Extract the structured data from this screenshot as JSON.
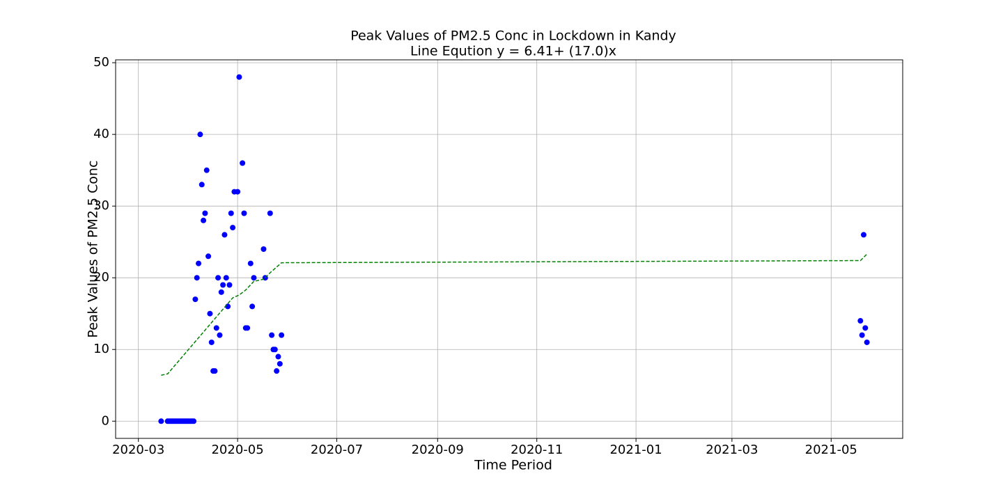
{
  "chart_data": {
    "type": "scatter",
    "title": "Peak Values of PM2.5 Conc in Lockdown in Kandy",
    "subtitle": "Line Eqution y = 6.41+ (17.0)x",
    "x_label": "Time Period",
    "y_label": "Peak Values of PM2.5 Conc",
    "xlim": [
      "2020-02-16",
      "2021-06-14"
    ],
    "xticks": [
      "2020-03",
      "2020-05",
      "2020-07",
      "2020-09",
      "2020-11",
      "2021-01",
      "2021-03",
      "2021-05"
    ],
    "ylim": [
      -2.4,
      50.4
    ],
    "yticks": [
      0,
      10,
      20,
      30,
      40,
      50
    ],
    "grid": true,
    "series": [
      {
        "type": "scatter",
        "color": "#0000ff",
        "x": [
          "2020-03-15",
          "2020-03-19",
          "2020-03-20",
          "2020-03-21",
          "2020-03-22",
          "2020-03-23",
          "2020-03-24",
          "2020-03-25",
          "2020-03-26",
          "2020-03-27",
          "2020-03-28",
          "2020-03-29",
          "2020-03-30",
          "2020-03-31",
          "2020-04-01",
          "2020-04-02",
          "2020-04-03",
          "2020-04-04",
          "2020-04-05",
          "2020-04-06",
          "2020-04-07",
          "2020-04-08",
          "2020-04-09",
          "2020-04-10",
          "2020-04-11",
          "2020-04-12",
          "2020-04-13",
          "2020-04-14",
          "2020-04-15",
          "2020-04-16",
          "2020-04-17",
          "2020-04-18",
          "2020-04-19",
          "2020-04-20",
          "2020-04-21",
          "2020-04-22",
          "2020-04-23",
          "2020-04-24",
          "2020-04-25",
          "2020-04-26",
          "2020-04-27",
          "2020-04-28",
          "2020-04-29",
          "2020-05-01",
          "2020-05-02",
          "2020-05-04",
          "2020-05-05",
          "2020-05-06",
          "2020-05-07",
          "2020-05-09",
          "2020-05-10",
          "2020-05-11",
          "2020-05-17",
          "2020-05-18",
          "2020-05-21",
          "2020-05-22",
          "2020-05-23",
          "2020-05-24",
          "2020-05-25",
          "2020-05-26",
          "2020-05-27",
          "2020-05-28",
          "2021-05-19",
          "2021-05-20",
          "2021-05-21",
          "2021-05-22",
          "2021-05-23"
        ],
        "values": [
          0,
          0,
          0,
          0,
          0,
          0,
          0,
          0,
          0,
          0,
          0,
          0,
          0,
          0,
          0,
          0,
          0,
          0,
          17,
          20,
          22,
          40,
          33,
          28,
          29,
          35,
          23,
          15,
          11,
          7,
          7,
          13,
          20,
          12,
          18,
          19,
          26,
          20,
          16,
          19,
          29,
          27,
          32,
          32,
          48,
          36,
          29,
          13,
          13,
          22,
          16,
          20,
          24,
          20,
          29,
          12,
          10,
          10,
          7,
          9,
          8,
          12,
          14,
          12,
          26,
          13,
          11
        ]
      },
      {
        "type": "line",
        "color": "#008000",
        "linestyle": "dashed",
        "x": [
          "2020-03-15",
          "2020-03-19",
          "2020-04-28",
          "2020-05-02",
          "2020-05-06",
          "2020-05-11",
          "2020-05-17",
          "2020-05-21",
          "2020-05-28",
          "2021-05-19",
          "2021-05-23"
        ],
        "values": [
          6.41,
          6.6,
          17.2,
          17.6,
          18.3,
          19.5,
          19.8,
          20.7,
          22.1,
          22.4,
          23.3
        ]
      }
    ]
  }
}
